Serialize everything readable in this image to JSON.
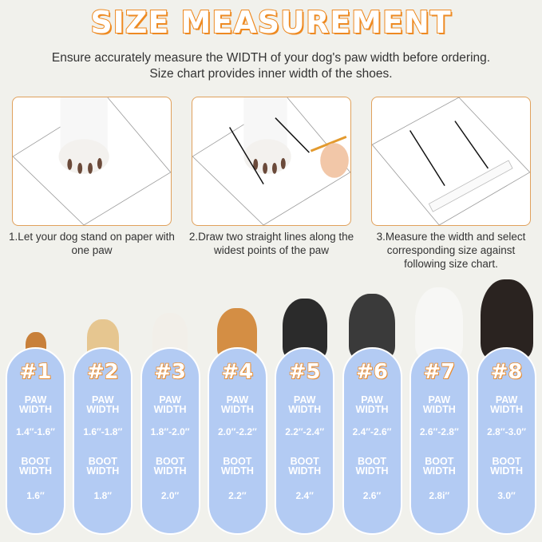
{
  "title": "SIZE MEASUREMENT",
  "subtitle": [
    "Ensure accurately measure the WIDTH of your dog's paw width before ordering.",
    "Size chart provides inner width of the shoes."
  ],
  "steps": [
    {
      "caption": "1.Let your dog stand on paper with one paw"
    },
    {
      "caption": "2.Draw two straight lines along the widest points of the paw"
    },
    {
      "caption": "3.Measure the width and select corresponding size against following size chart."
    }
  ],
  "colors": {
    "accent": "#ee8a22",
    "pill": "#b3cbf3",
    "background": "#f1f1ec"
  },
  "size_chart": {
    "paw_label": [
      "PAW",
      "WIDTH"
    ],
    "boot_label": [
      "BOOT",
      "WIDTH"
    ],
    "sizes": [
      {
        "size": "#1",
        "paw": "1.4″-1.6″",
        "boot": "1.6″"
      },
      {
        "size": "#2",
        "paw": "1.6″-1.8″",
        "boot": "1.8″"
      },
      {
        "size": "#3",
        "paw": "1.8″-2.0″",
        "boot": "2.0″"
      },
      {
        "size": "#4",
        "paw": "2.0″-2.2″",
        "boot": "2.2″"
      },
      {
        "size": "#5",
        "paw": "2.2″-2.4″",
        "boot": "2.4″"
      },
      {
        "size": "#6",
        "paw": "2.4″-2.6″",
        "boot": "2.6″"
      },
      {
        "size": "#7",
        "paw": "2.6″-2.8″",
        "boot": "2.8i″"
      },
      {
        "size": "#8",
        "paw": "2.8″-3.0″",
        "boot": "3.0″"
      }
    ]
  }
}
